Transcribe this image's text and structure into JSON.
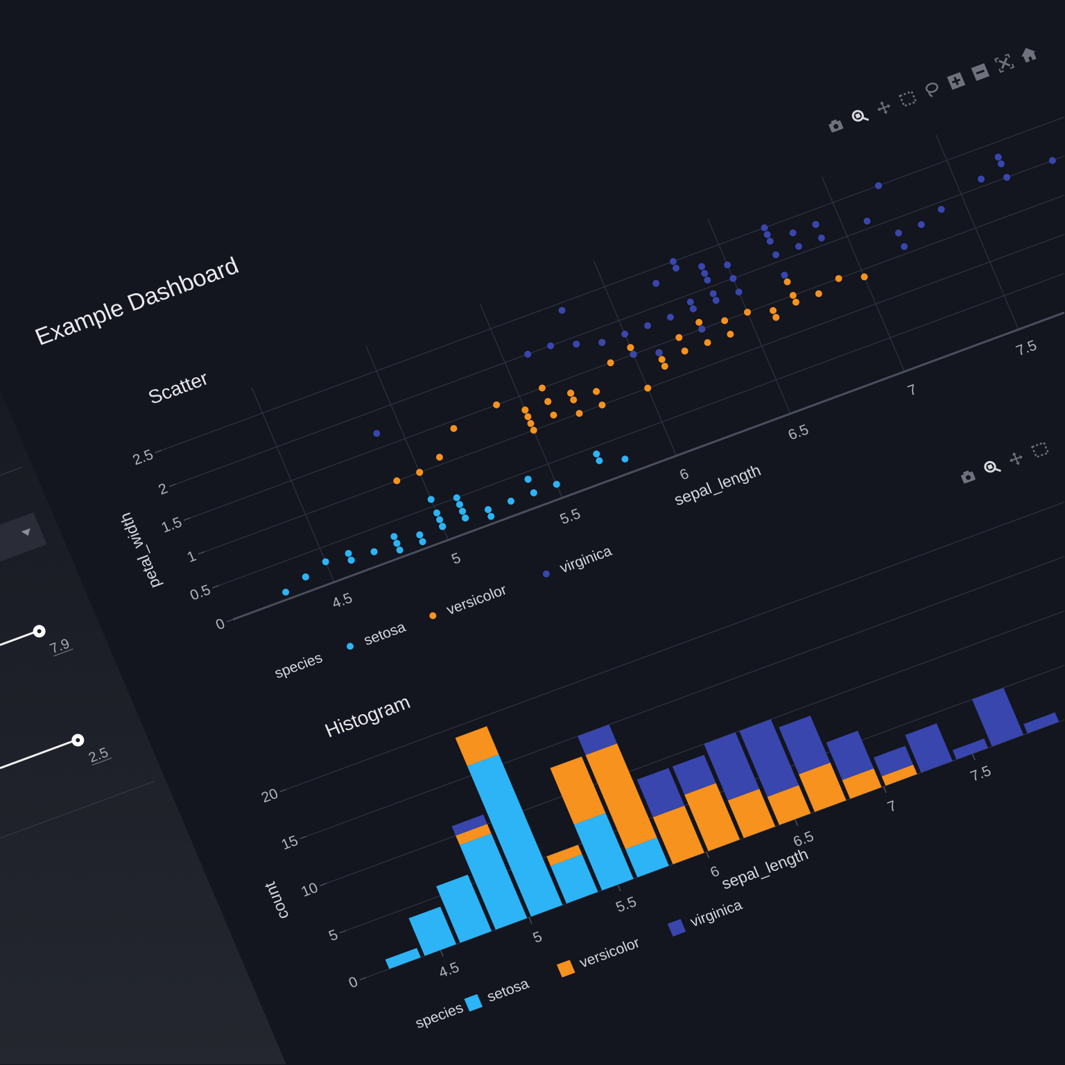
{
  "page": {
    "title": "Example Dashboard"
  },
  "sidebar": {
    "dropdown": {
      "icon": "caret-down-icon"
    },
    "sliders": [
      {
        "value": 7.9,
        "label": "7.9",
        "fill": 1.0
      },
      {
        "value": 2.5,
        "label": "2.5",
        "fill": 1.0
      }
    ]
  },
  "colors": {
    "setosa": "#2db4f6",
    "versicolor": "#f7921e",
    "virginica": "#3946ad",
    "background": "#13151f",
    "grid": "#2a2f3d"
  },
  "toolbar_icons": [
    "camera-icon",
    "zoom-icon",
    "pan-icon",
    "box-select-icon",
    "lasso-icon",
    "zoom-in-icon",
    "zoom-out-icon",
    "autoscale-icon",
    "home-icon"
  ],
  "scatter": {
    "title": "Scatter",
    "legend_title": "species"
  },
  "histogram": {
    "title": "Histogram",
    "legend_title": "species"
  },
  "chart_data": [
    {
      "type": "scatter",
      "title": "Scatter",
      "xlabel": "sepal_length",
      "ylabel": "petal_width",
      "xticks": [
        "4.5",
        "5",
        "5.5",
        "6",
        "6.5",
        "7",
        "7.5"
      ],
      "yticks": [
        "0",
        "0.5",
        "1",
        "1.5",
        "2",
        "2.5"
      ],
      "grid": true,
      "legend_placement": "bottom",
      "legend_title": "species",
      "series": [
        {
          "name": "setosa",
          "x": [
            5.1,
            4.9,
            4.7,
            4.6,
            5.0,
            5.4,
            4.6,
            5.0,
            4.4,
            4.9,
            5.4,
            4.8,
            4.8,
            4.3,
            5.8,
            5.7,
            5.4,
            5.1,
            5.7,
            5.1,
            5.4,
            5.1,
            4.6,
            5.1,
            4.8,
            5.0,
            5.0,
            5.2,
            5.2,
            4.7,
            4.8,
            5.4,
            5.2,
            5.5,
            4.9,
            5.0,
            5.5,
            4.9,
            4.4,
            5.1,
            5.0,
            4.5,
            4.4,
            5.0,
            5.1,
            4.8,
            5.1,
            4.6,
            5.3,
            5.0
          ],
          "y": [
            0.2,
            0.2,
            0.2,
            0.2,
            0.2,
            0.4,
            0.3,
            0.2,
            0.2,
            0.1,
            0.2,
            0.2,
            0.1,
            0.1,
            0.2,
            0.4,
            0.4,
            0.3,
            0.3,
            0.3,
            0.2,
            0.4,
            0.2,
            0.5,
            0.2,
            0.2,
            0.4,
            0.2,
            0.2,
            0.2,
            0.2,
            0.4,
            0.1,
            0.2,
            0.2,
            0.2,
            0.2,
            0.1,
            0.2,
            0.2,
            0.3,
            0.3,
            0.2,
            0.6,
            0.4,
            0.3,
            0.2,
            0.2,
            0.2,
            0.2
          ]
        },
        {
          "name": "versicolor",
          "x": [
            7.0,
            6.4,
            6.9,
            5.5,
            6.5,
            5.7,
            6.3,
            4.9,
            6.6,
            5.2,
            5.0,
            5.9,
            6.0,
            6.1,
            5.6,
            6.7,
            5.6,
            5.8,
            6.2,
            5.6,
            5.9,
            6.1,
            6.3,
            6.1,
            6.4,
            6.6,
            6.8,
            6.7,
            6.0,
            5.7,
            5.5,
            5.5,
            5.8,
            6.0,
            5.4,
            6.0,
            6.7,
            6.3,
            5.6,
            5.5,
            5.5,
            6.1,
            5.8,
            5.0,
            5.6,
            5.7,
            5.7,
            6.2,
            5.1,
            5.7
          ],
          "y": [
            1.4,
            1.5,
            1.5,
            1.3,
            1.5,
            1.3,
            1.6,
            1.0,
            1.3,
            1.4,
            1.0,
            1.5,
            1.0,
            1.4,
            1.3,
            1.4,
            1.5,
            1.0,
            1.5,
            1.1,
            1.8,
            1.3,
            1.5,
            1.2,
            1.3,
            1.4,
            1.4,
            1.7,
            1.5,
            1.0,
            1.1,
            1.0,
            1.2,
            1.6,
            1.5,
            1.6,
            1.5,
            1.3,
            1.3,
            1.3,
            1.2,
            1.4,
            1.2,
            1.0,
            1.3,
            1.2,
            1.3,
            1.3,
            1.1,
            1.3
          ]
        },
        {
          "name": "virginica",
          "x": [
            6.3,
            5.8,
            7.1,
            6.3,
            6.5,
            7.6,
            4.9,
            7.3,
            6.7,
            7.2,
            6.5,
            6.4,
            6.8,
            5.7,
            5.8,
            6.4,
            6.5,
            7.7,
            7.7,
            6.0,
            6.9,
            5.6,
            7.7,
            6.3,
            6.7,
            7.2,
            6.2,
            6.1,
            6.4,
            7.2,
            7.4,
            7.9,
            6.4,
            6.3,
            6.1,
            7.7,
            6.3,
            6.4,
            6.0,
            6.9,
            6.7,
            6.9,
            5.8,
            6.8,
            6.7,
            6.7,
            6.3,
            6.5,
            6.2,
            5.9
          ],
          "y": [
            2.5,
            1.9,
            2.1,
            1.8,
            2.2,
            2.1,
            1.7,
            1.8,
            1.8,
            2.5,
            2.0,
            1.9,
            2.1,
            2.0,
            2.4,
            2.3,
            1.8,
            2.2,
            2.3,
            1.5,
            2.3,
            2.0,
            2.0,
            1.8,
            2.1,
            1.8,
            1.8,
            1.8,
            2.1,
            1.6,
            1.9,
            2.0,
            2.2,
            1.5,
            1.4,
            2.3,
            2.4,
            1.8,
            1.8,
            2.1,
            2.4,
            2.3,
            1.9,
            2.3,
            2.5,
            2.3,
            1.9,
            2.0,
            2.3,
            1.8
          ]
        }
      ]
    },
    {
      "type": "bar",
      "stacked": true,
      "title": "Histogram",
      "xlabel": "sepal_length",
      "ylabel": "count",
      "bin_start": 4.2,
      "bin_size": 0.2,
      "categories": [
        "4.2-4.4",
        "4.4-4.6",
        "4.6-4.8",
        "4.8-5.0",
        "5.0-5.2",
        "5.2-5.4",
        "5.4-5.6",
        "5.6-5.8",
        "5.8-6.0",
        "6.0-6.2",
        "6.2-6.4",
        "6.4-6.6",
        "6.6-6.8",
        "6.8-7.0",
        "7.0-7.2",
        "7.2-7.4",
        "7.4-7.6",
        "7.6-7.8",
        "7.8-8.0"
      ],
      "xticks": [
        "4.5",
        "5",
        "5.5",
        "6",
        "6.5",
        "7",
        "7.5"
      ],
      "yticks": [
        "0",
        "5",
        "10",
        "15",
        "20"
      ],
      "grid": true,
      "legend_placement": "bottom",
      "legend_title": "species",
      "series": [
        {
          "name": "setosa",
          "values": [
            1,
            4,
            6,
            9,
            16,
            4,
            7,
            3,
            0,
            0,
            0,
            0,
            0,
            0,
            0,
            0,
            0,
            0,
            0
          ]
        },
        {
          "name": "versicolor",
          "values": [
            0,
            0,
            0,
            1,
            3,
            1,
            6,
            10,
            5,
            6,
            4,
            3,
            4,
            2,
            1,
            0,
            0,
            0,
            0
          ]
        },
        {
          "name": "virginica",
          "values": [
            0,
            0,
            0,
            1,
            0,
            0,
            0,
            2,
            4,
            3,
            6,
            7,
            5,
            4,
            2,
            4,
            1,
            5,
            1
          ]
        }
      ]
    }
  ]
}
